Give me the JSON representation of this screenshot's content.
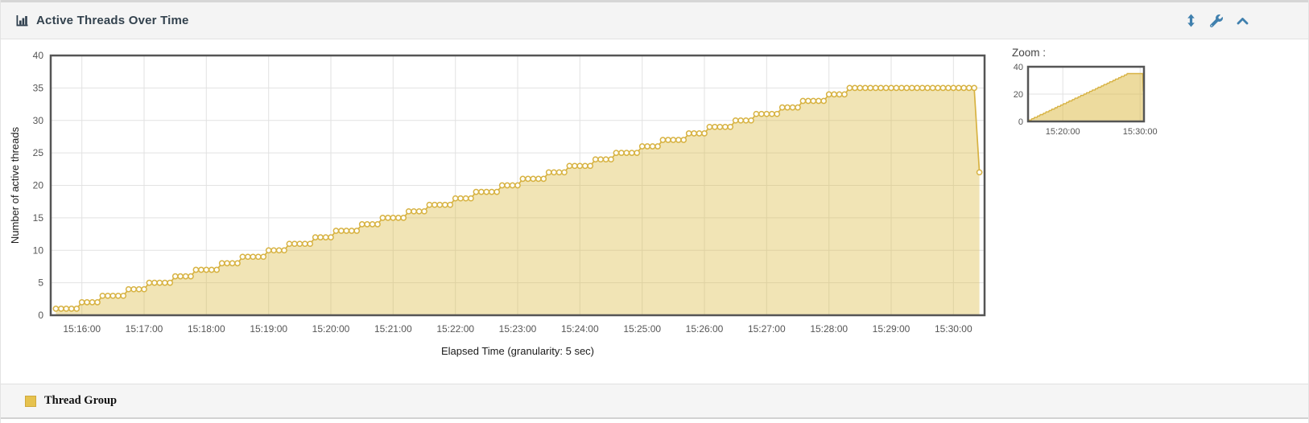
{
  "header": {
    "title": "Active Threads Over Time"
  },
  "zoom_panel": {
    "label": "Zoom :"
  },
  "legend": {
    "items": [
      {
        "label": "Thread Group",
        "color": "#e6c24e"
      }
    ]
  },
  "colors": {
    "accent_blue": "#4080ae",
    "title_dark": "#33424e",
    "series_line": "#d7b242",
    "series_fill": "rgba(219,183,61,0.38)",
    "zoom_fill": "rgba(219,183,61,0.5)",
    "point_fill": "#fffef6",
    "grid": "#e2e2e2",
    "plot_border": "#555555",
    "tick_text": "#555555"
  },
  "chart_data": {
    "type": "area",
    "title": "Active Threads Over Time",
    "series_name": "Thread Group",
    "time_start": "15:15:30",
    "time_end": "15:30:30",
    "first_point_time": "15:15:35",
    "granularity_sec": 5,
    "y_axis": {
      "label": "Number of active threads",
      "min": 0,
      "max": 40,
      "ticks": [
        0,
        5,
        10,
        15,
        20,
        25,
        30,
        35,
        40
      ]
    },
    "x_axis": {
      "label": "Elapsed Time (granularity: 5 sec)",
      "ticks": [
        "15:16:00",
        "15:17:00",
        "15:18:00",
        "15:19:00",
        "15:20:00",
        "15:21:00",
        "15:22:00",
        "15:23:00",
        "15:24:00",
        "15:25:00",
        "15:26:00",
        "15:27:00",
        "15:28:00",
        "15:29:00",
        "15:30:00"
      ]
    },
    "values_per_5s": [
      1,
      1,
      1,
      1,
      1,
      2,
      2,
      2,
      2,
      3,
      3,
      3,
      3,
      3,
      4,
      4,
      4,
      4,
      5,
      5,
      5,
      5,
      5,
      6,
      6,
      6,
      6,
      7,
      7,
      7,
      7,
      7,
      8,
      8,
      8,
      8,
      9,
      9,
      9,
      9,
      9,
      10,
      10,
      10,
      10,
      11,
      11,
      11,
      11,
      11,
      12,
      12,
      12,
      12,
      13,
      13,
      13,
      13,
      13,
      14,
      14,
      14,
      14,
      15,
      15,
      15,
      15,
      15,
      16,
      16,
      16,
      16,
      17,
      17,
      17,
      17,
      17,
      18,
      18,
      18,
      18,
      19,
      19,
      19,
      19,
      19,
      20,
      20,
      20,
      20,
      21,
      21,
      21,
      21,
      21,
      22,
      22,
      22,
      22,
      23,
      23,
      23,
      23,
      23,
      24,
      24,
      24,
      24,
      25,
      25,
      25,
      25,
      25,
      26,
      26,
      26,
      26,
      27,
      27,
      27,
      27,
      27,
      28,
      28,
      28,
      28,
      29,
      29,
      29,
      29,
      29,
      30,
      30,
      30,
      30,
      31,
      31,
      31,
      31,
      31,
      32,
      32,
      32,
      32,
      33,
      33,
      33,
      33,
      33,
      34,
      34,
      34,
      34,
      35,
      35,
      35,
      35,
      35,
      35,
      35,
      35,
      35,
      35,
      35,
      35,
      35,
      35,
      35,
      35,
      35,
      35,
      35,
      35,
      35,
      35,
      35,
      35,
      35,
      22
    ],
    "zoom_overview": {
      "y_ticks": [
        0,
        20,
        40
      ],
      "x_ticks": [
        "15:20:00",
        "15:30:00"
      ]
    }
  }
}
